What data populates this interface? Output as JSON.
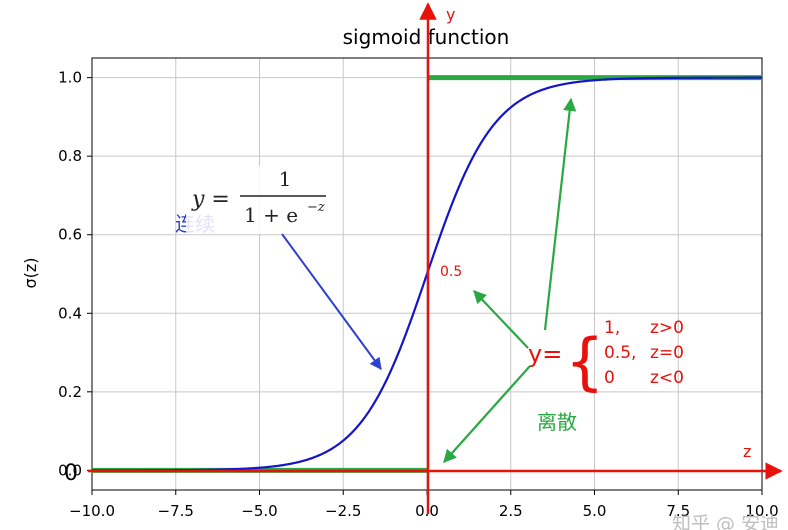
{
  "chart_data": {
    "type": "line",
    "title": "sigmoid function",
    "ylabel": "σ(z)",
    "xlabel": "",
    "xlim": [
      -10,
      10
    ],
    "ylim": [
      -0.05,
      1.05
    ],
    "x_ticks": [
      -10,
      -7.5,
      -5,
      -2.5,
      0,
      2.5,
      5,
      7.5,
      10
    ],
    "x_tick_labels": [
      "−10.0",
      "−7.5",
      "−5.0",
      "−2.5",
      "0.0",
      "2.5",
      "5.0",
      "7.5",
      "10.0"
    ],
    "y_ticks": [
      0.0,
      0.2,
      0.4,
      0.6,
      0.8,
      1.0
    ],
    "y_tick_labels": [
      "0.0",
      "0.2",
      "0.4",
      "0.6",
      "0.8",
      "1.0"
    ],
    "grid": true,
    "series": [
      {
        "kind": "sigmoid",
        "color": "#1414c8",
        "x_range": [
          -10,
          10
        ]
      },
      {
        "kind": "step",
        "color": "#2aa843",
        "segments": [
          {
            "x": [
              -10,
              0
            ],
            "y": 0
          },
          {
            "x": [
              0,
              10
            ],
            "y": 1
          }
        ]
      }
    ]
  },
  "annotations": {
    "axis_y_letter": "y",
    "axis_z_letter": "z",
    "zero_label": "0",
    "half_label": "0.5",
    "continuous_label": "连续",
    "discrete_label": "离散",
    "formula_lhs": "y =",
    "formula_num": "1",
    "formula_den_a": "1 + e",
    "formula_den_exp": "−z",
    "piecewise_lhs": "y=",
    "piecewise": [
      {
        "value": "1,",
        "cond": "z>0"
      },
      {
        "value": "0.5,",
        "cond": "z=0"
      },
      {
        "value": "0",
        "cond": "z<0"
      }
    ]
  },
  "watermark": "知乎 @ 安迪",
  "colors": {
    "red": "#e8120c",
    "green": "#2aa843",
    "blue": "#2f3fd0",
    "curve": "#1414c8",
    "grid": "#c8c8c8"
  }
}
